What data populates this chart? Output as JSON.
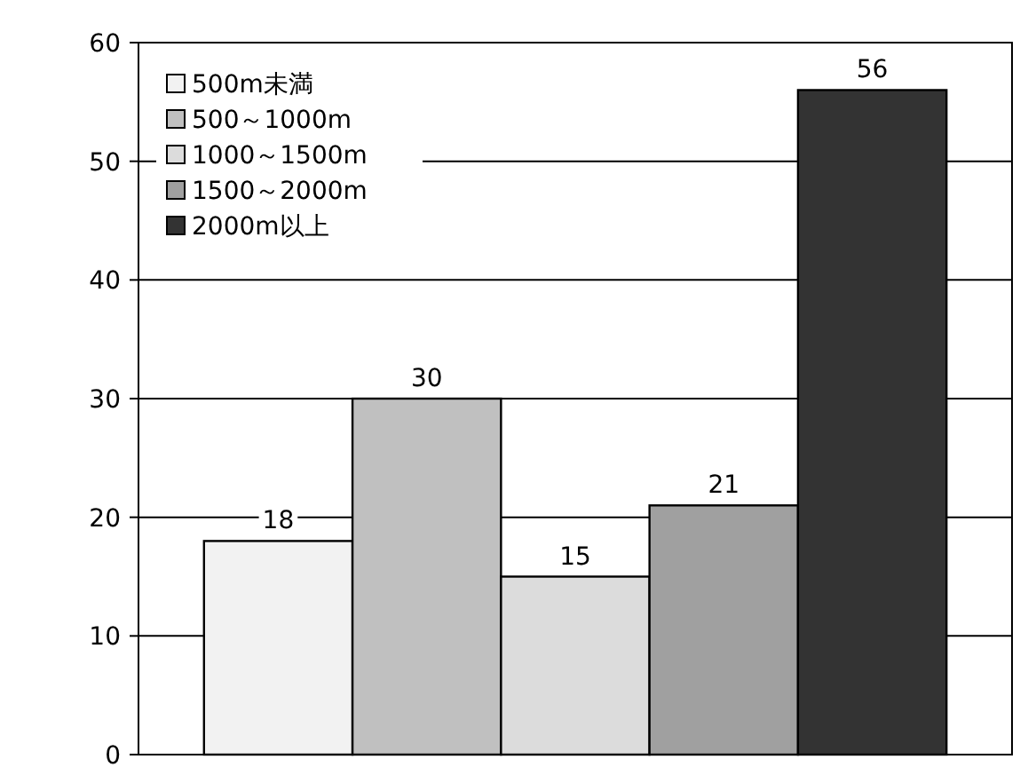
{
  "chart_data": {
    "type": "bar",
    "categories": [
      null
    ],
    "series": [
      {
        "name": "500m未満",
        "color": "#f2f2f2",
        "values": [
          18
        ]
      },
      {
        "name": "500～1000m",
        "color": "#c0c0c0",
        "values": [
          30
        ]
      },
      {
        "name": "1000～1500m",
        "color": "#dcdcdc",
        "values": [
          15
        ]
      },
      {
        "name": "1500～2000m",
        "color": "#a0a0a0",
        "values": [
          21
        ]
      },
      {
        "name": "2000m以上",
        "color": "#333333",
        "values": [
          56
        ]
      }
    ],
    "ylim": [
      0,
      60
    ],
    "yticks": [
      0,
      10,
      20,
      30,
      40,
      50,
      60
    ],
    "grid": "y",
    "legend": "top left",
    "data_labels": true
  }
}
